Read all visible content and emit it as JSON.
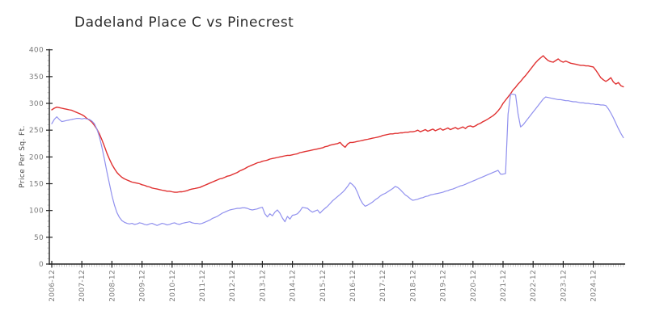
{
  "page": {
    "background": "#ffffff"
  },
  "chart_data": {
    "type": "line",
    "title": "Dadeland Place C vs Pinecrest",
    "xlabel": "",
    "ylabel": "Price Per Sq. Ft.",
    "x_start": "2006-12",
    "x_frequency": "monthly",
    "x_tick_labels": [
      "2006-12",
      "2007-12",
      "2008-12",
      "2009-12",
      "2010-12",
      "2011-12",
      "2012-12",
      "2013-12",
      "2014-12",
      "2015-12",
      "2016-12",
      "2017-12",
      "2018-12",
      "2019-12",
      "2020-12",
      "2021-12",
      "2022-12",
      "2023-12",
      "2024-12"
    ],
    "ylim": [
      0,
      400
    ],
    "y_ticks": [
      0,
      50,
      100,
      150,
      200,
      250,
      300,
      350,
      400
    ],
    "grid": false,
    "legend": "none",
    "axis_color": "#222222",
    "minor_tick_color": "#bdbdbd",
    "series": [
      {
        "name": "Dadeland Place C",
        "color": "#e03131",
        "values": [
          288,
          291,
          293,
          292,
          291,
          290,
          289,
          288,
          287,
          285,
          283,
          281,
          279,
          276,
          272,
          269,
          265,
          259,
          252,
          243,
          232,
          220,
          207,
          196,
          186,
          178,
          171,
          166,
          162,
          159,
          157,
          155,
          153,
          152,
          151,
          150,
          148,
          147,
          145,
          144,
          142,
          141,
          140,
          139,
          138,
          137,
          136,
          136,
          135,
          134,
          134,
          135,
          135,
          136,
          137,
          139,
          140,
          141,
          142,
          143,
          145,
          147,
          149,
          151,
          153,
          155,
          157,
          159,
          160,
          162,
          164,
          165,
          167,
          169,
          171,
          174,
          176,
          178,
          181,
          183,
          185,
          187,
          189,
          190,
          192,
          193,
          194,
          196,
          197,
          198,
          199,
          200,
          201,
          202,
          203,
          203,
          204,
          205,
          206,
          208,
          209,
          210,
          211,
          212,
          213,
          214,
          215,
          216,
          217,
          219,
          220,
          222,
          223,
          224,
          225,
          227,
          222,
          218,
          224,
          227,
          227,
          228,
          229,
          230,
          231,
          232,
          233,
          234,
          235,
          236,
          237,
          238,
          240,
          241,
          242,
          243,
          243,
          244,
          244,
          245,
          245,
          246,
          246,
          247,
          247,
          248,
          250,
          247,
          249,
          251,
          248,
          250,
          252,
          249,
          251,
          253,
          250,
          252,
          254,
          251,
          253,
          255,
          252,
          254,
          256,
          253,
          257,
          258,
          256,
          258,
          261,
          263,
          266,
          268,
          271,
          274,
          277,
          281,
          286,
          292,
          300,
          306,
          312,
          318,
          325,
          330,
          336,
          341,
          347,
          352,
          358,
          364,
          370,
          376,
          381,
          385,
          389,
          384,
          380,
          378,
          377,
          380,
          383,
          379,
          377,
          379,
          377,
          375,
          374,
          373,
          372,
          371,
          371,
          370,
          370,
          369,
          368,
          362,
          355,
          348,
          344,
          341,
          344,
          348,
          340,
          336,
          339,
          333,
          331
        ]
      },
      {
        "name": "Pinecrest",
        "color": "#9090ee",
        "values": [
          262,
          270,
          275,
          270,
          266,
          267,
          268,
          269,
          270,
          271,
          272,
          272,
          271,
          272,
          271,
          270,
          267,
          262,
          252,
          238,
          218,
          196,
          172,
          150,
          128,
          110,
          96,
          87,
          81,
          78,
          76,
          75,
          76,
          74,
          75,
          77,
          76,
          74,
          73,
          75,
          76,
          74,
          72,
          74,
          76,
          75,
          73,
          74,
          76,
          77,
          75,
          74,
          76,
          77,
          78,
          79,
          77,
          76,
          76,
          75,
          76,
          78,
          80,
          82,
          85,
          87,
          89,
          92,
          95,
          97,
          99,
          101,
          102,
          103,
          104,
          104,
          105,
          105,
          104,
          102,
          101,
          102,
          103,
          105,
          106,
          94,
          88,
          94,
          90,
          97,
          101,
          95,
          86,
          79,
          89,
          84,
          91,
          92,
          94,
          99,
          106,
          105,
          104,
          100,
          97,
          99,
          101,
          95,
          100,
          104,
          108,
          113,
          118,
          122,
          126,
          130,
          134,
          139,
          145,
          152,
          148,
          143,
          133,
          121,
          113,
          108,
          110,
          113,
          116,
          120,
          123,
          127,
          130,
          132,
          135,
          138,
          141,
          145,
          143,
          139,
          134,
          129,
          126,
          122,
          119,
          120,
          121,
          123,
          124,
          126,
          127,
          129,
          130,
          131,
          132,
          133,
          134,
          136,
          137,
          139,
          140,
          142,
          144,
          146,
          147,
          149,
          151,
          153,
          155,
          157,
          159,
          161,
          163,
          165,
          167,
          169,
          171,
          173,
          175,
          168,
          168,
          169,
          280,
          317,
          317,
          316,
          280,
          256,
          260,
          266,
          272,
          278,
          284,
          290,
          296,
          302,
          308,
          312,
          311,
          310,
          309,
          308,
          307,
          307,
          306,
          305,
          305,
          304,
          303,
          303,
          302,
          301,
          301,
          300,
          300,
          299,
          299,
          298,
          298,
          297,
          297,
          296,
          290,
          282,
          273,
          263,
          253,
          244,
          236
        ]
      }
    ]
  }
}
